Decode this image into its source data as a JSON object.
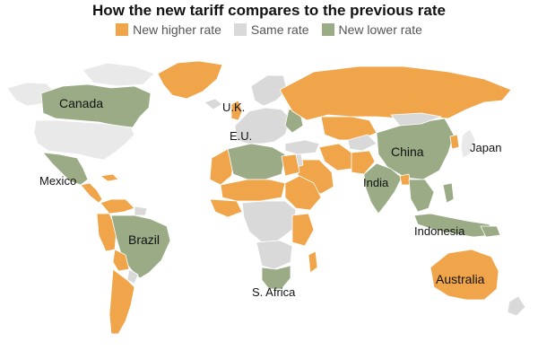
{
  "title": "How the new tariff compares to the previous rate",
  "legend": [
    {
      "label": "New higher rate",
      "color": "#f0a54a"
    },
    {
      "label": "Same rate",
      "color": "#d9d9d9"
    },
    {
      "label": "New lower rate",
      "color": "#9aab86"
    }
  ],
  "colors": {
    "higher": "#f0a54a",
    "same": "#d9d9d9",
    "lower": "#9aab86",
    "nodata": "#e9e9e9"
  },
  "labels": {
    "canada": "Canada",
    "uk": "U.K.",
    "eu": "E.U.",
    "china": "China",
    "japan": "Japan",
    "mexico": "Mexico",
    "india": "India",
    "brazil": "Brazil",
    "indonesia": "Indonesia",
    "australia": "Australia",
    "s_africa": "S. Africa"
  }
}
